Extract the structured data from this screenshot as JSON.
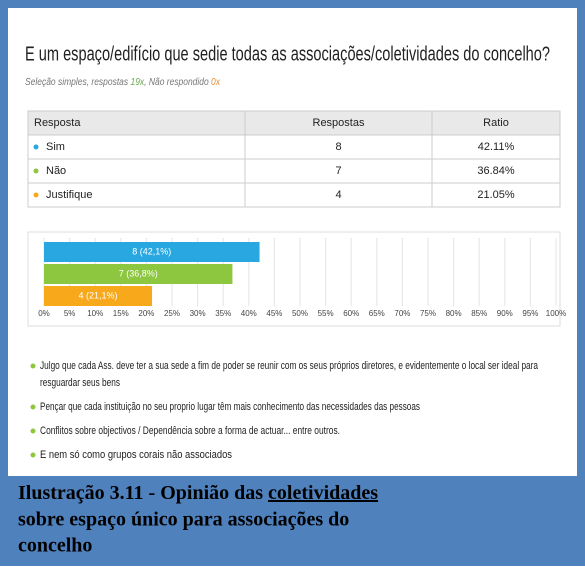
{
  "question": {
    "title": "E um espaço/edifício que sedie todas as associações/coletividades do concelho?",
    "subtitle": {
      "prefix": "Seleção simples, respostas ",
      "answered": "19x",
      "middle": ", Não respondido ",
      "unanswered": "0x"
    }
  },
  "table": {
    "header": [
      "Resposta",
      "Respostas",
      "Ratio"
    ],
    "rows": [
      [
        "Sim",
        "8",
        "42.11%"
      ],
      [
        "Não",
        "7",
        "36.84%"
      ],
      [
        "Justifique",
        "4",
        "21.05%"
      ]
    ]
  },
  "chart_data": {
    "type": "bar",
    "orientation": "horizontal",
    "values": [
      42.1,
      36.8,
      21.1
    ],
    "value_labels": [
      "8 (42,1%)",
      "7 (36,8%)",
      "4 (21,1%)"
    ],
    "colors": [
      "#29a7e1",
      "#8dc63f",
      "#f7a81b"
    ],
    "xlim": [
      0,
      100
    ],
    "xticks": [
      {
        "value": 0,
        "label": "0%"
      },
      {
        "value": 5,
        "label": "5%"
      },
      {
        "value": 10,
        "label": "10%"
      },
      {
        "value": 15,
        "label": "15%"
      },
      {
        "value": 20,
        "label": "20%"
      },
      {
        "value": 25,
        "label": "25%"
      },
      {
        "value": 30,
        "label": "30%"
      },
      {
        "value": 35,
        "label": "35%"
      },
      {
        "value": 40,
        "label": "40%"
      },
      {
        "value": 45,
        "label": "45%"
      },
      {
        "value": 50,
        "label": "50%"
      },
      {
        "value": 55,
        "label": "55%"
      },
      {
        "value": 60,
        "label": "60%"
      },
      {
        "value": 65,
        "label": "65%"
      },
      {
        "value": 70,
        "label": "70%"
      },
      {
        "value": 75,
        "label": "75%"
      },
      {
        "value": 80,
        "label": "80%"
      },
      {
        "value": 85,
        "label": "85%"
      },
      {
        "value": 90,
        "label": "90%"
      },
      {
        "value": 95,
        "label": "95%"
      },
      {
        "value": 100,
        "label": "100%"
      }
    ],
    "grid": true
  },
  "comments": [
    [
      "Julgo que cada Ass. deve ter a sua sede a fim de poder se reunir com os seus próprios diretores, e evidentemente o local ser ideal para",
      "resguardar seus bens"
    ],
    [
      "Pençar que cada instituição no seu proprio lugar têm mais conhecimento das necessidades das pessoas"
    ],
    [
      "Conflitos sobre objectivos / Dependência sobre a forma de actuar... entre outros."
    ],
    [
      "E nem só como grupos corais não associados"
    ]
  ],
  "caption": {
    "lead": "Ilustração 3.11 - Opinião das ",
    "underlined": "coletividades",
    "line2": "sobre espaço único para associações do",
    "line3": "concelho"
  }
}
